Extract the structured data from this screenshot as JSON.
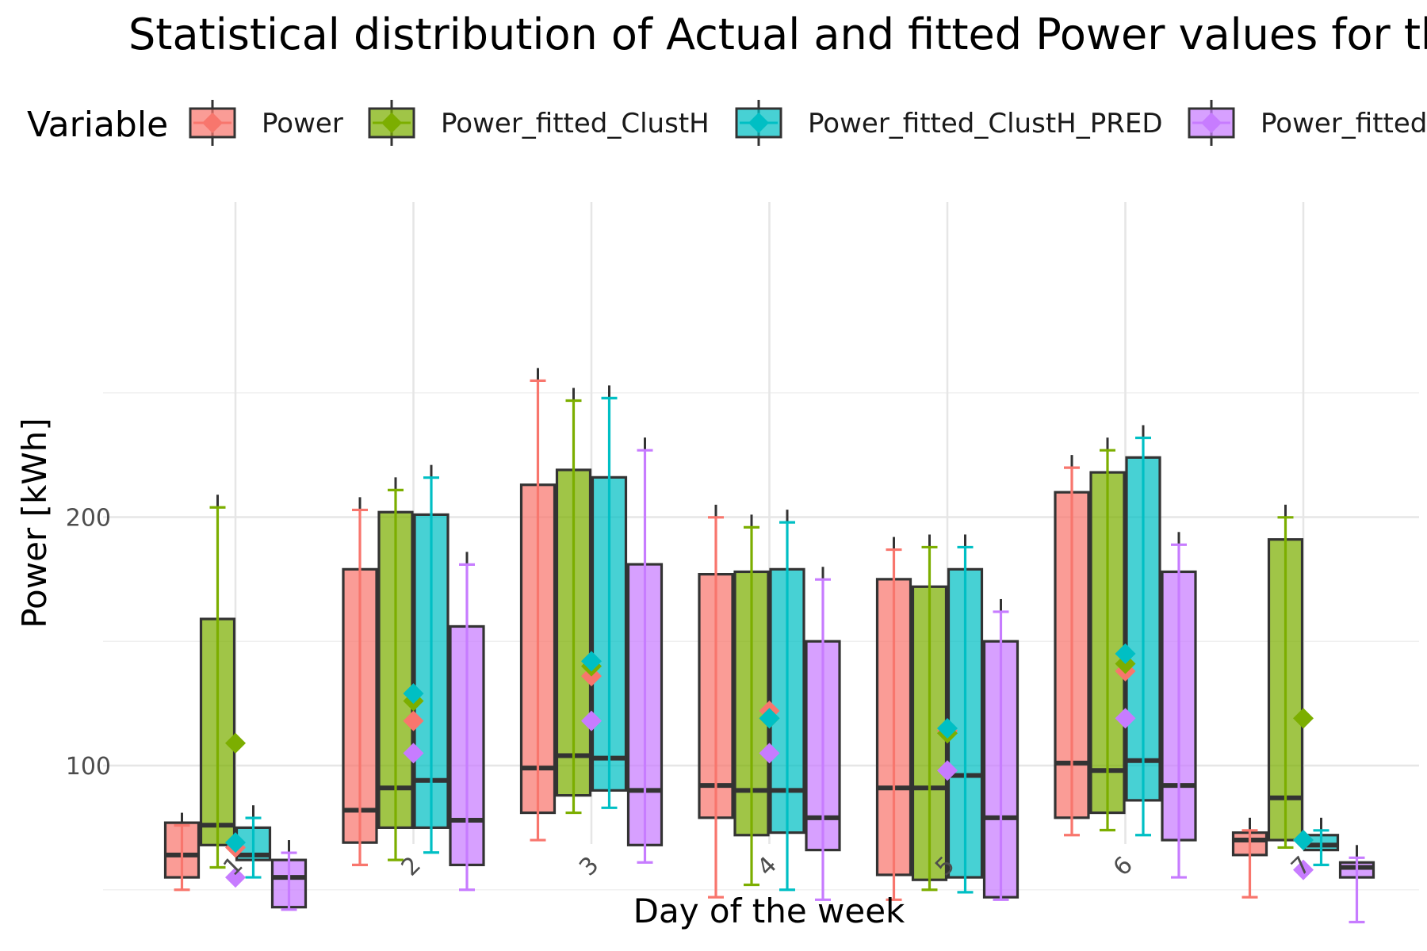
{
  "chart_data": {
    "type": "boxplot",
    "title": "Statistical distribution of Actual and fitted Power values for the d",
    "xlabel": "Day of the week",
    "ylabel": "Power [kWh]",
    "ylim": [
      25,
      275
    ],
    "yticks": [
      100,
      200
    ],
    "categories": [
      "1",
      "2",
      "3",
      "4",
      "5",
      "6",
      "7"
    ],
    "legend": {
      "title": "Variable",
      "position": "top"
    },
    "grid": true,
    "series": [
      {
        "name": "Power",
        "color": "#F8766D",
        "boxes": [
          {
            "min": 50,
            "q1": 55,
            "median": 64,
            "q3": 77,
            "max": 81,
            "mean": 67
          },
          {
            "min": 60,
            "q1": 69,
            "median": 82,
            "q3": 179,
            "max": 208,
            "mean": 118
          },
          {
            "min": 70,
            "q1": 81,
            "median": 99,
            "q3": 213,
            "max": 260,
            "mean": 136
          },
          {
            "min": 47,
            "q1": 79,
            "median": 92,
            "q3": 177,
            "max": 205,
            "mean": 122
          },
          {
            "min": 46,
            "q1": 56,
            "median": 91,
            "q3": 175,
            "max": 192,
            "mean": 114
          },
          {
            "min": 72,
            "q1": 79,
            "median": 101,
            "q3": 210,
            "max": 225,
            "mean": 138
          },
          {
            "min": 47,
            "q1": 64,
            "median": 70,
            "q3": 73,
            "max": 79,
            "mean": 70
          }
        ]
      },
      {
        "name": "Power_fitted_ClustH",
        "color": "#7CAE00",
        "boxes": [
          {
            "min": 59,
            "q1": 68,
            "median": 76,
            "q3": 159,
            "max": 209,
            "mean": 109
          },
          {
            "min": 62,
            "q1": 75,
            "median": 91,
            "q3": 202,
            "max": 216,
            "mean": 126
          },
          {
            "min": 81,
            "q1": 88,
            "median": 104,
            "q3": 219,
            "max": 252,
            "mean": 140
          },
          {
            "min": 52,
            "q1": 72,
            "median": 90,
            "q3": 178,
            "max": 201,
            "mean": 119
          },
          {
            "min": 50,
            "q1": 54,
            "median": 91,
            "q3": 172,
            "max": 193,
            "mean": 113
          },
          {
            "min": 74,
            "q1": 81,
            "median": 98,
            "q3": 218,
            "max": 232,
            "mean": 141
          },
          {
            "min": 67,
            "q1": 70,
            "median": 87,
            "q3": 191,
            "max": 205,
            "mean": 119
          }
        ]
      },
      {
        "name": "Power_fitted_ClustH_PRED",
        "color": "#00BFC4",
        "boxes": [
          {
            "min": 55,
            "q1": 62,
            "median": 64,
            "q3": 75,
            "max": 84,
            "mean": 69
          },
          {
            "min": 65,
            "q1": 75,
            "median": 94,
            "q3": 201,
            "max": 221,
            "mean": 129
          },
          {
            "min": 83,
            "q1": 90,
            "median": 103,
            "q3": 216,
            "max": 253,
            "mean": 142
          },
          {
            "min": 50,
            "q1": 73,
            "median": 90,
            "q3": 179,
            "max": 203,
            "mean": 119
          },
          {
            "min": 49,
            "q1": 55,
            "median": 96,
            "q3": 179,
            "max": 193,
            "mean": 115
          },
          {
            "min": 72,
            "q1": 86,
            "median": 102,
            "q3": 224,
            "max": 237,
            "mean": 145
          },
          {
            "min": 60,
            "q1": 66,
            "median": 68,
            "q3": 72,
            "max": 79,
            "mean": 70
          }
        ]
      },
      {
        "name": "Power_fitted",
        "color": "#C77CFF",
        "boxes": [
          {
            "min": 42,
            "q1": 43,
            "median": 55,
            "q3": 62,
            "max": 70,
            "mean": 55
          },
          {
            "min": 50,
            "q1": 60,
            "median": 78,
            "q3": 156,
            "max": 186,
            "mean": 105
          },
          {
            "min": 61,
            "q1": 68,
            "median": 90,
            "q3": 181,
            "max": 232,
            "mean": 118
          },
          {
            "min": 46,
            "q1": 66,
            "median": 79,
            "q3": 150,
            "max": 180,
            "mean": 105
          },
          {
            "min": 46,
            "q1": 47,
            "median": 79,
            "q3": 150,
            "max": 167,
            "mean": 98
          },
          {
            "min": 55,
            "q1": 70,
            "median": 92,
            "q3": 178,
            "max": 194,
            "mean": 119
          },
          {
            "min": 37,
            "q1": 55,
            "median": 59,
            "q3": 61,
            "max": 68,
            "mean": 58
          }
        ]
      }
    ]
  }
}
